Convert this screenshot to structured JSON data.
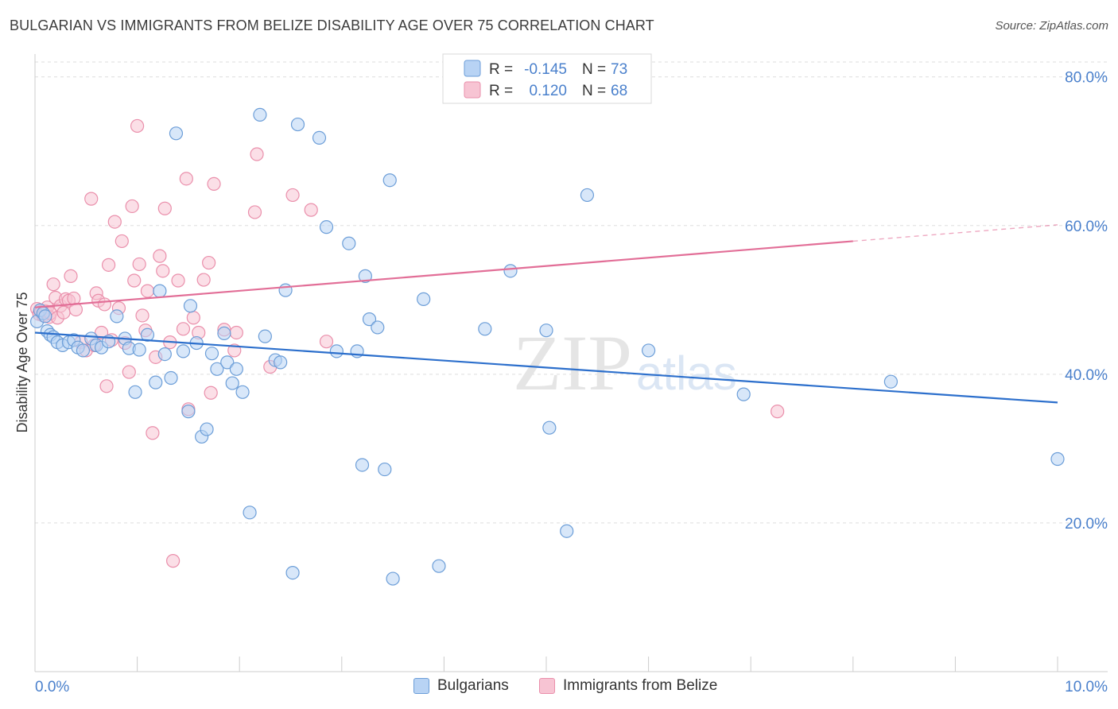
{
  "title": "BULGARIAN VS IMMIGRANTS FROM BELIZE DISABILITY AGE OVER 75 CORRELATION CHART",
  "source": "Source: ZipAtlas.com",
  "watermark": "ZIPatlas",
  "colors": {
    "blue_fill": "#b8d3f4",
    "blue_stroke": "#6c9ed8",
    "blue_line": "#2c6fcc",
    "pink_fill": "#f7c4d3",
    "pink_stroke": "#ea8fab",
    "pink_line": "#e26e97",
    "axis_text": "#4a80cc",
    "grid": "#dddddd"
  },
  "legend_top": {
    "rows": [
      {
        "r_label": "R =",
        "r_value": "-0.145",
        "n_label": "N =",
        "n_value": "73"
      },
      {
        "r_label": "R =",
        "r_value": "0.120",
        "n_label": "N =",
        "n_value": "68"
      }
    ]
  },
  "legend_bottom": [
    "Bulgarians",
    "Immigrants from Belize"
  ],
  "chart_data": {
    "type": "scatter",
    "title": "BULGARIAN VS IMMIGRANTS FROM BELIZE DISABILITY AGE OVER 75 CORRELATION CHART",
    "xlabel": "",
    "ylabel": "Disability Age Over 75",
    "xlim": [
      0,
      10
    ],
    "ylim": [
      0,
      82
    ],
    "x_tick_labels": [
      "0.0%",
      "10.0%"
    ],
    "y_ticks": [
      20,
      40,
      60,
      80
    ],
    "y_tick_labels": [
      "20.0%",
      "40.0%",
      "60.0%",
      "80.0%"
    ],
    "grid": "horizontal dashed",
    "legend_position": "top-center",
    "series": [
      {
        "name": "Bulgarians",
        "color": "#6c9ed8",
        "r": -0.145,
        "n": 73,
        "trend": {
          "x": [
            0.0,
            10.0
          ],
          "y": [
            45.6,
            36.2
          ],
          "dashed_from": null
        },
        "points": [
          [
            0.02,
            47.1
          ],
          [
            0.05,
            48.6
          ],
          [
            0.08,
            48.2
          ],
          [
            0.1,
            47.8
          ],
          [
            0.12,
            45.8
          ],
          [
            0.15,
            45.3
          ],
          [
            0.18,
            45.0
          ],
          [
            0.22,
            44.3
          ],
          [
            0.27,
            43.9
          ],
          [
            0.33,
            44.3
          ],
          [
            0.38,
            44.6
          ],
          [
            0.42,
            43.6
          ],
          [
            0.47,
            43.2
          ],
          [
            0.55,
            44.8
          ],
          [
            0.6,
            43.9
          ],
          [
            0.65,
            43.6
          ],
          [
            0.72,
            44.4
          ],
          [
            0.8,
            47.8
          ],
          [
            0.88,
            44.8
          ],
          [
            0.92,
            43.5
          ],
          [
            0.98,
            37.6
          ],
          [
            1.02,
            43.3
          ],
          [
            1.1,
            45.3
          ],
          [
            1.18,
            38.9
          ],
          [
            1.22,
            51.2
          ],
          [
            1.27,
            42.7
          ],
          [
            1.33,
            39.5
          ],
          [
            1.38,
            72.4
          ],
          [
            1.45,
            43.1
          ],
          [
            1.5,
            35.0
          ],
          [
            1.52,
            49.2
          ],
          [
            1.58,
            44.2
          ],
          [
            1.63,
            31.6
          ],
          [
            1.68,
            32.6
          ],
          [
            1.73,
            42.8
          ],
          [
            1.78,
            40.7
          ],
          [
            1.85,
            45.5
          ],
          [
            1.88,
            41.6
          ],
          [
            1.93,
            38.8
          ],
          [
            1.97,
            40.7
          ],
          [
            2.03,
            37.6
          ],
          [
            2.1,
            21.4
          ],
          [
            2.2,
            74.9
          ],
          [
            2.25,
            45.1
          ],
          [
            2.35,
            41.9
          ],
          [
            2.4,
            41.6
          ],
          [
            2.45,
            51.3
          ],
          [
            2.52,
            13.3
          ],
          [
            2.57,
            73.6
          ],
          [
            2.78,
            71.8
          ],
          [
            2.85,
            59.8
          ],
          [
            2.95,
            43.1
          ],
          [
            3.07,
            57.6
          ],
          [
            3.15,
            43.1
          ],
          [
            3.2,
            27.8
          ],
          [
            3.23,
            53.2
          ],
          [
            3.27,
            47.4
          ],
          [
            3.35,
            46.3
          ],
          [
            3.42,
            27.2
          ],
          [
            3.47,
            66.1
          ],
          [
            3.5,
            12.5
          ],
          [
            3.8,
            50.1
          ],
          [
            3.95,
            14.2
          ],
          [
            4.4,
            46.1
          ],
          [
            4.65,
            53.9
          ],
          [
            5.0,
            45.9
          ],
          [
            5.03,
            32.8
          ],
          [
            5.2,
            18.9
          ],
          [
            5.4,
            64.1
          ],
          [
            6.0,
            43.2
          ],
          [
            6.93,
            37.3
          ],
          [
            8.37,
            39.0
          ],
          [
            10.0,
            28.6
          ]
        ]
      },
      {
        "name": "Immigrants from Belize",
        "color": "#ea8fab",
        "r": 0.12,
        "n": 68,
        "trend": {
          "x": [
            0.0,
            8.0,
            10.0
          ],
          "y": [
            49.0,
            57.9,
            60.1
          ],
          "dashed_from": 8.0
        },
        "points": [
          [
            0.02,
            48.8
          ],
          [
            0.04,
            48.1
          ],
          [
            0.06,
            48.4
          ],
          [
            0.08,
            47.9
          ],
          [
            0.1,
            48.5
          ],
          [
            0.12,
            49.0
          ],
          [
            0.14,
            47.7
          ],
          [
            0.15,
            48.2
          ],
          [
            0.18,
            52.1
          ],
          [
            0.2,
            50.3
          ],
          [
            0.22,
            47.6
          ],
          [
            0.25,
            49.2
          ],
          [
            0.28,
            48.3
          ],
          [
            0.3,
            50.1
          ],
          [
            0.33,
            49.9
          ],
          [
            0.35,
            53.2
          ],
          [
            0.38,
            50.2
          ],
          [
            0.4,
            48.7
          ],
          [
            0.45,
            44.3
          ],
          [
            0.5,
            43.2
          ],
          [
            0.55,
            63.6
          ],
          [
            0.6,
            50.9
          ],
          [
            0.62,
            49.9
          ],
          [
            0.65,
            45.6
          ],
          [
            0.68,
            49.4
          ],
          [
            0.7,
            38.4
          ],
          [
            0.72,
            54.7
          ],
          [
            0.75,
            44.6
          ],
          [
            0.78,
            60.5
          ],
          [
            0.82,
            48.9
          ],
          [
            0.85,
            57.9
          ],
          [
            0.88,
            44.2
          ],
          [
            0.92,
            40.3
          ],
          [
            0.95,
            62.6
          ],
          [
            0.97,
            52.6
          ],
          [
            1.0,
            73.4
          ],
          [
            1.02,
            54.8
          ],
          [
            1.05,
            47.9
          ],
          [
            1.08,
            45.9
          ],
          [
            1.1,
            51.2
          ],
          [
            1.15,
            32.1
          ],
          [
            1.18,
            42.3
          ],
          [
            1.22,
            55.9
          ],
          [
            1.25,
            53.9
          ],
          [
            1.27,
            62.3
          ],
          [
            1.32,
            44.3
          ],
          [
            1.35,
            14.9
          ],
          [
            1.4,
            52.6
          ],
          [
            1.45,
            46.1
          ],
          [
            1.48,
            66.3
          ],
          [
            1.5,
            35.3
          ],
          [
            1.55,
            47.6
          ],
          [
            1.6,
            45.6
          ],
          [
            1.65,
            52.7
          ],
          [
            1.7,
            55.0
          ],
          [
            1.72,
            37.5
          ],
          [
            1.75,
            65.6
          ],
          [
            1.85,
            46.0
          ],
          [
            1.95,
            43.2
          ],
          [
            1.97,
            45.6
          ],
          [
            2.15,
            61.8
          ],
          [
            2.17,
            69.6
          ],
          [
            2.3,
            41.0
          ],
          [
            2.52,
            64.1
          ],
          [
            2.7,
            62.1
          ],
          [
            2.85,
            44.4
          ],
          [
            7.26,
            35.0
          ],
          [
            0.58,
            43.9
          ]
        ]
      }
    ]
  }
}
